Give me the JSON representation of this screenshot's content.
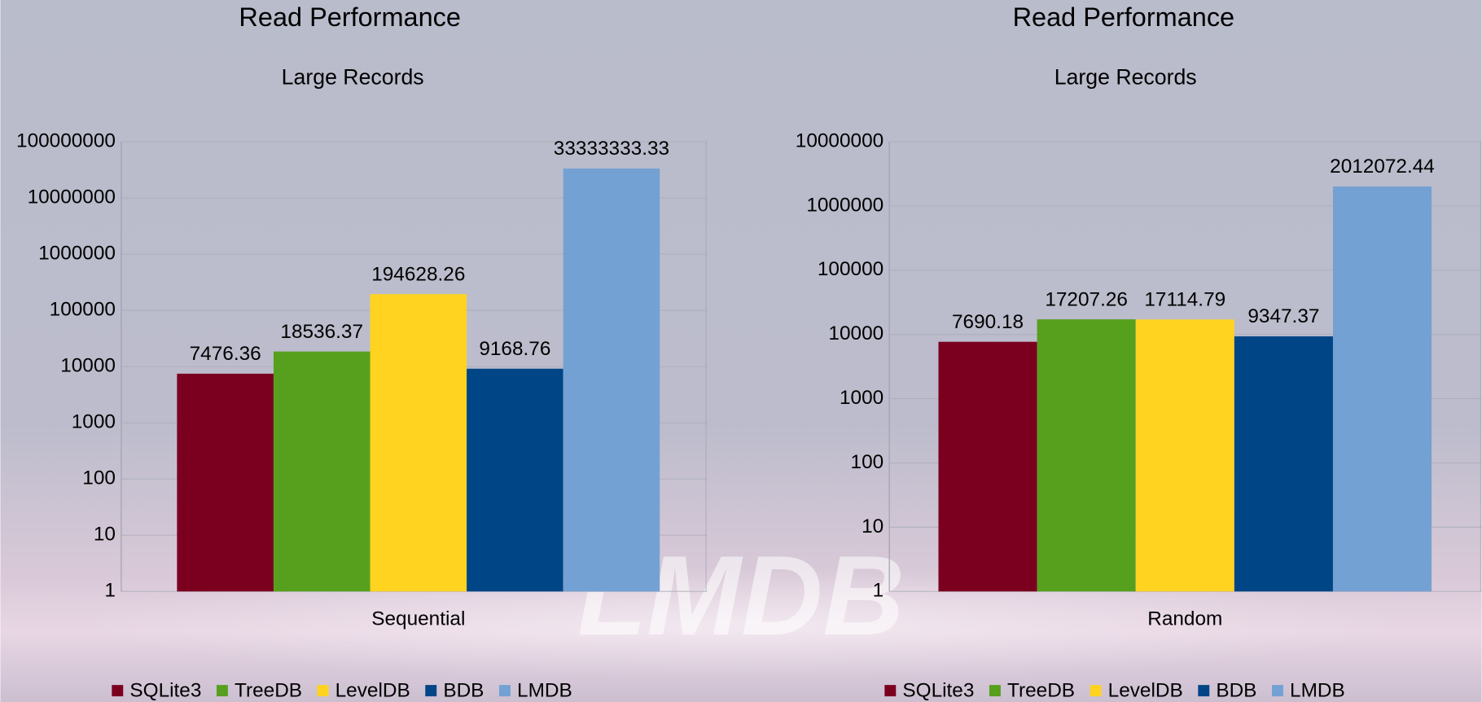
{
  "watermark": "LMDB",
  "chart_data": [
    {
      "type": "bar",
      "title": "Read Performance",
      "subtitle": "Large Records",
      "categories": [
        "Sequential"
      ],
      "series": [
        {
          "name": "SQLite3",
          "color": "#7b0020",
          "values": [
            7476.36
          ]
        },
        {
          "name": "TreeDB",
          "color": "#56a01e",
          "values": [
            18536.37
          ]
        },
        {
          "name": "LevelDB",
          "color": "#ffd320",
          "values": [
            194628.26
          ]
        },
        {
          "name": "BDB",
          "color": "#004586",
          "values": [
            9168.76
          ]
        },
        {
          "name": "LMDB",
          "color": "#74a1d3",
          "values": [
            33333333.33
          ]
        }
      ],
      "ylim": [
        1,
        100000000
      ],
      "yticks": [
        1,
        10,
        100,
        1000,
        10000,
        100000,
        1000000,
        10000000,
        100000000
      ],
      "log_scale": true,
      "grid": true,
      "legend": "bottom"
    },
    {
      "type": "bar",
      "title": "Read Performance",
      "subtitle": "Large Records",
      "categories": [
        "Random"
      ],
      "series": [
        {
          "name": "SQLite3",
          "color": "#7b0020",
          "values": [
            7690.18
          ]
        },
        {
          "name": "TreeDB",
          "color": "#56a01e",
          "values": [
            17207.26
          ]
        },
        {
          "name": "LevelDB",
          "color": "#ffd320",
          "values": [
            17114.79
          ]
        },
        {
          "name": "BDB",
          "color": "#004586",
          "values": [
            9347.37
          ]
        },
        {
          "name": "LMDB",
          "color": "#74a1d3",
          "values": [
            2012072.44
          ]
        }
      ],
      "ylim": [
        1,
        10000000
      ],
      "yticks": [
        1,
        10,
        100,
        1000,
        10000,
        100000,
        1000000,
        10000000
      ],
      "log_scale": true,
      "grid": true,
      "legend": "bottom"
    }
  ]
}
